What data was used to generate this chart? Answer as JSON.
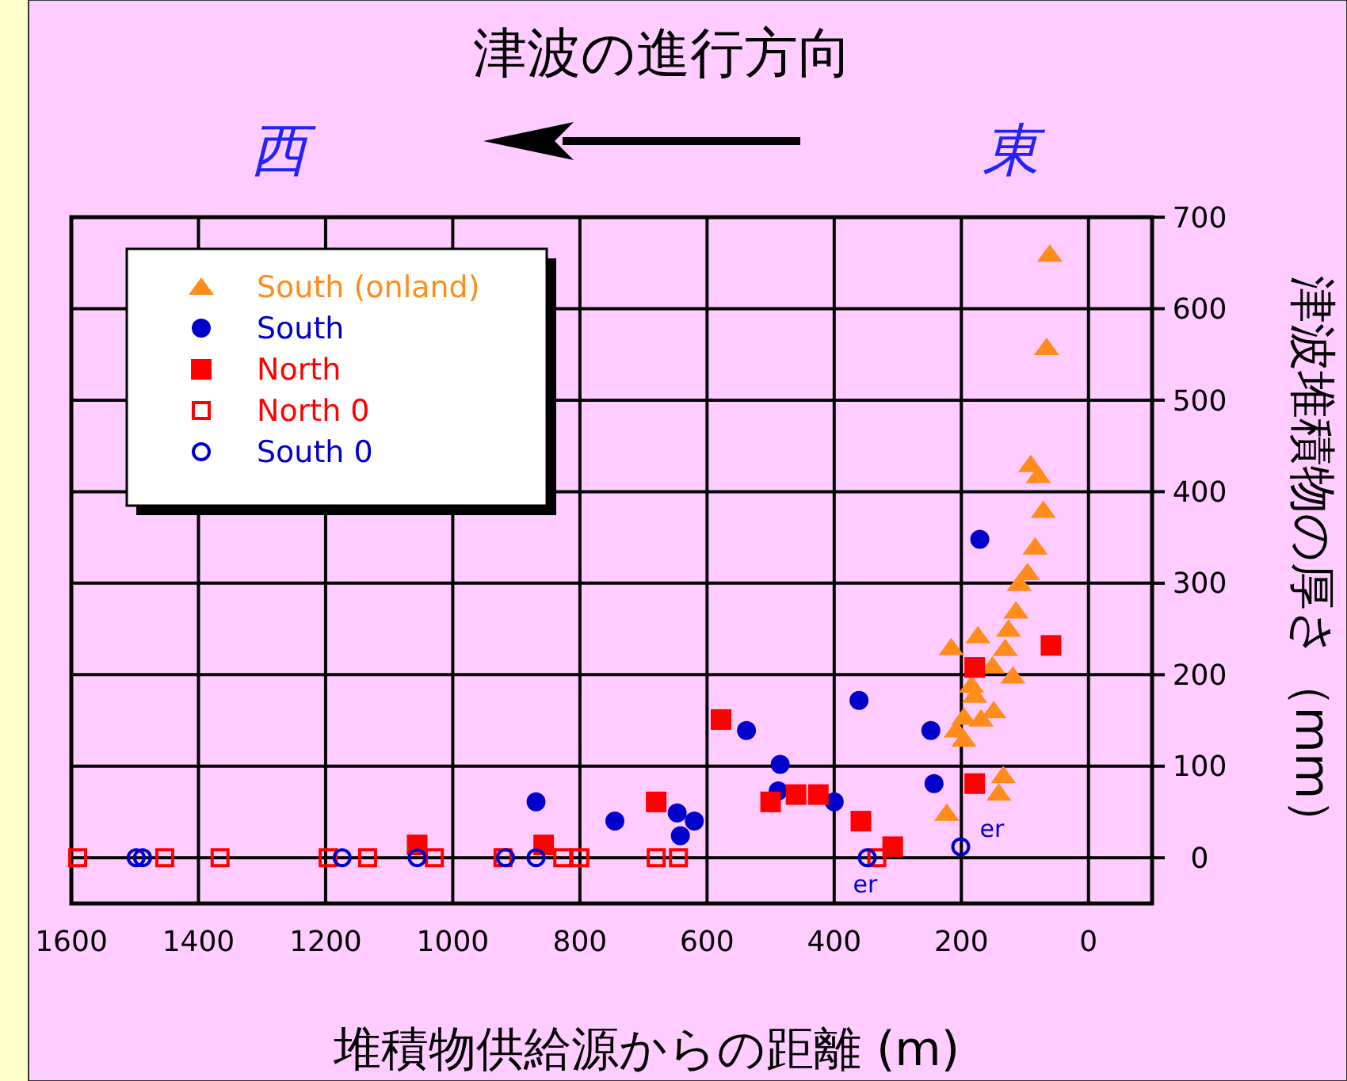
{
  "chart_data": {
    "type": "scatter",
    "title": "津波の進行方向",
    "xlabel": "堆積物供給源からの距離  (m)",
    "ylabel": "津波堆積物の厚さ（mm）",
    "annotations": [
      "西",
      "東",
      {
        "text": "er",
        "x": 348,
        "y": 0
      },
      {
        "text": "er",
        "x": 201,
        "y": 12
      }
    ],
    "xlim": [
      1600,
      -100
    ],
    "xticks": [
      1600,
      1400,
      1200,
      1000,
      800,
      600,
      400,
      200,
      0
    ],
    "ylim": [
      -50,
      700
    ],
    "yticks": [
      0,
      100,
      200,
      300,
      400,
      500,
      600,
      700
    ],
    "grid": true,
    "legend": "top left",
    "series": [
      {
        "name": "South (onland)",
        "color": "#ff8c1a",
        "marker": "triangle",
        "x": [
          61,
          66,
          91,
          79,
          71,
          84,
          96,
          109,
          114,
          126,
          174,
          216,
          131,
          151,
          119,
          184,
          179,
          196,
          149,
          169,
          208,
          196,
          134,
          141,
          223
        ],
        "values": [
          660,
          558,
          430,
          418,
          380,
          340,
          312,
          300,
          270,
          250,
          243,
          230,
          229,
          210,
          199,
          189,
          178,
          154,
          161,
          152,
          140,
          130,
          90,
          71,
          49
        ]
      },
      {
        "name": "South",
        "color": "#0000cc",
        "marker": "circle",
        "x": [
          171,
          361,
          248,
          243,
          400,
          538,
          485,
          488,
          869,
          745,
          647,
          620,
          642
        ],
        "values": [
          348,
          172,
          139,
          81,
          61,
          139,
          102,
          73,
          61,
          40,
          49,
          40,
          24
        ]
      },
      {
        "name": "North",
        "color": "#ff0000",
        "marker": "square",
        "x": [
          59,
          179,
          179,
          358,
          308,
          425,
          460,
          578,
          500,
          680,
          857,
          1056
        ],
        "values": [
          232,
          208,
          81,
          40,
          12,
          69,
          69,
          151,
          61,
          61,
          14,
          14
        ]
      },
      {
        "name": "North 0",
        "color": "#ff0000",
        "marker": "square-open",
        "x": [
          1590,
          1453,
          1366,
          1196,
          1134,
          1029,
          921,
          827,
          800,
          680,
          645,
          333
        ],
        "values": [
          0,
          0,
          0,
          0,
          0,
          0,
          0,
          0,
          0,
          0,
          0,
          0
        ]
      },
      {
        "name": "South 0",
        "color": "#0000cc",
        "marker": "circle-open",
        "x": [
          1498,
          1488,
          1174,
          1056,
          917,
          869,
          348,
          201
        ],
        "values": [
          0,
          0,
          0,
          0,
          0,
          0,
          0,
          12
        ]
      }
    ]
  }
}
